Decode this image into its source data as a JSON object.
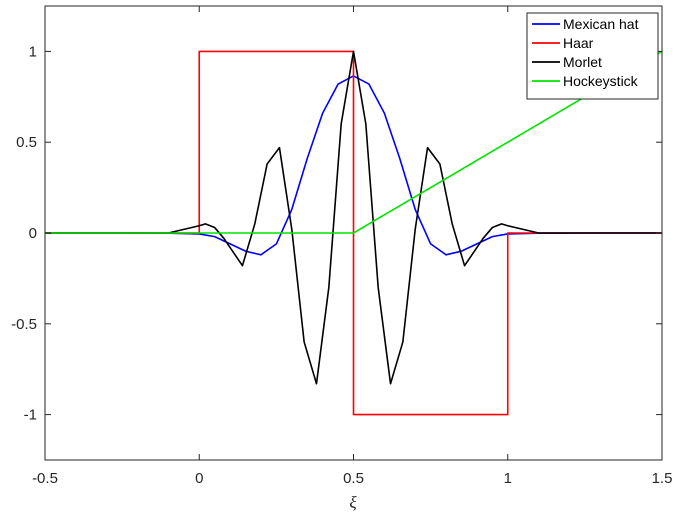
{
  "chart_data": {
    "type": "line",
    "xlabel": "ξ",
    "ylabel": "",
    "title": "",
    "xlim": [
      -0.5,
      1.5
    ],
    "ylim": [
      -1.25,
      1.25
    ],
    "xticks": [
      -0.5,
      0,
      0.5,
      1,
      1.5
    ],
    "xtick_labels": [
      "-0.5",
      "0",
      "0.5",
      "1",
      "1.5"
    ],
    "yticks": [
      -1,
      -0.5,
      0,
      0.5,
      1
    ],
    "ytick_labels": [
      "-1",
      "-0.5",
      "0",
      "0.5",
      "1"
    ],
    "grid": false,
    "legend_position": "top-right",
    "series": [
      {
        "name": "Mexican hat",
        "color": "#0000ff",
        "x": [
          -0.5,
          -0.3,
          -0.1,
          0,
          0.05,
          0.1,
          0.15,
          0.2,
          0.25,
          0.3,
          0.35,
          0.4,
          0.45,
          0.5,
          0.55,
          0.6,
          0.65,
          0.7,
          0.75,
          0.8,
          0.85,
          0.9,
          0.95,
          1.0,
          1.1,
          1.3,
          1.5
        ],
        "y": [
          0,
          0,
          -0.001,
          -0.005,
          -0.02,
          -0.06,
          -0.1,
          -0.12,
          -0.06,
          0.13,
          0.41,
          0.66,
          0.82,
          0.865,
          0.82,
          0.66,
          0.41,
          0.13,
          -0.06,
          -0.12,
          -0.1,
          -0.06,
          -0.02,
          -0.005,
          -0.001,
          0,
          0
        ]
      },
      {
        "name": "Haar",
        "color": "#ff0000",
        "x": [
          -0.5,
          0,
          0,
          0.5,
          0.5,
          1,
          1,
          1.5
        ],
        "y": [
          0,
          0,
          1,
          1,
          -1,
          -1,
          0,
          0
        ]
      },
      {
        "name": "Morlet",
        "color": "#000000",
        "x": [
          -0.5,
          -0.1,
          0,
          0.02,
          0.05,
          0.08,
          0.1,
          0.14,
          0.18,
          0.22,
          0.26,
          0.3,
          0.34,
          0.38,
          0.42,
          0.46,
          0.5,
          0.54,
          0.58,
          0.62,
          0.66,
          0.7,
          0.74,
          0.78,
          0.82,
          0.86,
          0.9,
          0.92,
          0.95,
          0.98,
          1.0,
          1.1,
          1.5
        ],
        "y": [
          0,
          0,
          0.04,
          0.05,
          0.03,
          -0.03,
          -0.08,
          -0.18,
          0.05,
          0.38,
          0.47,
          0.02,
          -0.6,
          -0.83,
          -0.3,
          0.6,
          1.0,
          0.6,
          -0.3,
          -0.83,
          -0.6,
          0.02,
          0.47,
          0.38,
          0.05,
          -0.18,
          -0.08,
          -0.03,
          0.03,
          0.05,
          0.04,
          0,
          0
        ]
      },
      {
        "name": "Hockeystick",
        "color": "#00e600",
        "x": [
          -0.5,
          0.5,
          1.5
        ],
        "y": [
          0,
          0,
          1
        ]
      }
    ]
  }
}
